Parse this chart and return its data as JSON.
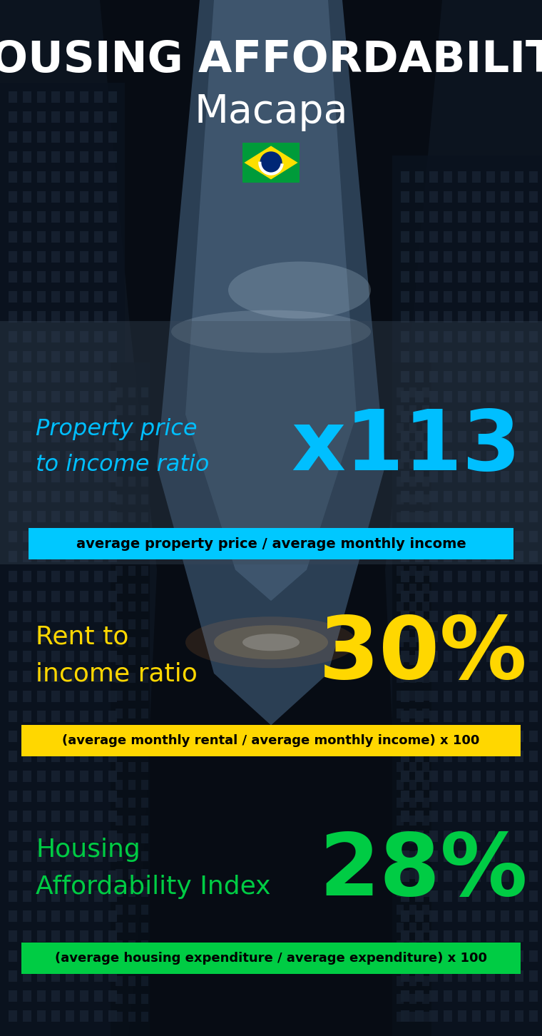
{
  "title_line1": "HOUSING AFFORDABILITY",
  "title_line2": "Macapa",
  "section1_label": "Property price\nto income ratio",
  "section1_value": "x113",
  "section1_formula": "average property price / average monthly income",
  "section1_label_color": "#00BFFF",
  "section1_value_color": "#00BFFF",
  "section1_formula_bg": "#00C8FF",
  "section1_formula_color": "#000000",
  "section2_label": "Rent to\nincome ratio",
  "section2_value": "30%",
  "section2_formula": "(average monthly rental / average monthly income) x 100",
  "section2_label_color": "#FFD700",
  "section2_value_color": "#FFD700",
  "section2_formula_bg": "#FFD700",
  "section2_formula_color": "#000000",
  "section3_label": "Housing\nAffordability Index",
  "section3_value": "28%",
  "section3_formula": "(average housing expenditure / average expenditure) x 100",
  "section3_label_color": "#00CC44",
  "section3_value_color": "#00CC44",
  "section3_formula_bg": "#00CC44",
  "section3_formula_color": "#000000",
  "bg_color": "#060a12",
  "title_color": "#FFFFFF",
  "figsize": [
    7.6,
    14.52
  ],
  "dpi": 100,
  "panel1_alpha": 0.45,
  "panel2_alpha": 0.0,
  "panel3_alpha": 0.0
}
